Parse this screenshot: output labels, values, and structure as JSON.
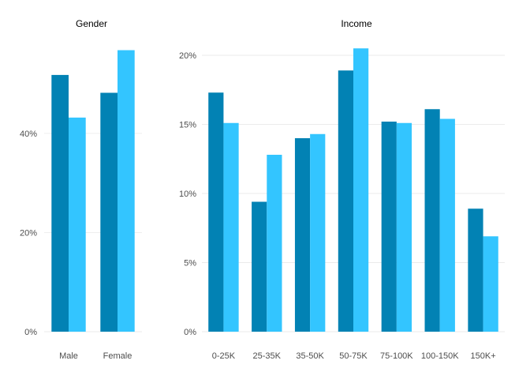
{
  "colors": {
    "series_dark": "#0282b4",
    "series_light": "#33c5ff",
    "grid": "#ebebeb",
    "text": "#4d4d4d",
    "title": "#000000"
  },
  "chart_data": [
    {
      "type": "bar",
      "title": "Gender",
      "categories": [
        "Male",
        "Female"
      ],
      "series": [
        {
          "values": [
            51.8,
            48.2
          ]
        },
        {
          "values": [
            43.2,
            56.8
          ]
        }
      ],
      "ylim": [
        0,
        58
      ],
      "yticks": [
        0,
        20,
        40
      ],
      "ytick_labels": [
        "0%",
        "20%",
        "40%"
      ],
      "grid": true,
      "legend": "none"
    },
    {
      "type": "bar",
      "title": "Income",
      "categories": [
        "0-25K",
        "25-35K",
        "35-50K",
        "50-75K",
        "75-100K",
        "100-150K",
        "150K+"
      ],
      "series": [
        {
          "values": [
            17.3,
            9.4,
            14.0,
            18.9,
            15.2,
            16.1,
            8.9
          ]
        },
        {
          "values": [
            15.1,
            12.8,
            14.3,
            20.5,
            15.1,
            15.4,
            6.9
          ]
        }
      ],
      "ylim": [
        0,
        20.8
      ],
      "yticks": [
        0,
        5,
        10,
        15,
        20
      ],
      "ytick_labels": [
        "0%",
        "5%",
        "10%",
        "15%",
        "20%"
      ],
      "grid": true,
      "legend": "none"
    }
  ]
}
